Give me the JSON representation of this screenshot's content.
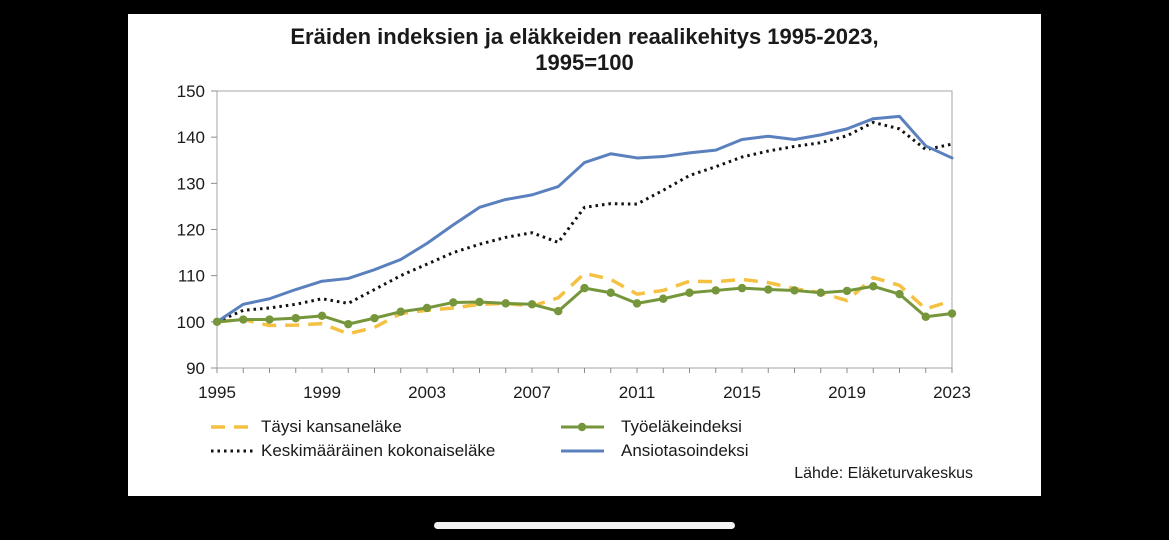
{
  "chart_data": {
    "type": "line",
    "title": "Eräiden indeksien ja eläkkeiden reaalikehitys 1995-2023,",
    "subtitle": "1995=100",
    "xlabel": "",
    "ylabel": "",
    "ylim": [
      90,
      150
    ],
    "yticks": [
      90,
      100,
      110,
      120,
      130,
      140,
      150
    ],
    "xlim": [
      1995,
      2023
    ],
    "xticks": [
      1995,
      1999,
      2003,
      2007,
      2011,
      2015,
      2019,
      2023
    ],
    "x": [
      1995,
      1996,
      1997,
      1998,
      1999,
      2000,
      2001,
      2002,
      2003,
      2004,
      2005,
      2006,
      2007,
      2008,
      2009,
      2010,
      2011,
      2012,
      2013,
      2014,
      2015,
      2016,
      2017,
      2018,
      2019,
      2020,
      2021,
      2022,
      2023
    ],
    "series": [
      {
        "name": "Täysi kansaneläke",
        "color": "#F5C142",
        "style": "dashed",
        "values": [
          100,
          100.5,
          99.2,
          99.3,
          99.6,
          97.4,
          98.8,
          101.8,
          102.5,
          103,
          103.8,
          104,
          103.4,
          105.2,
          110.5,
          109.2,
          106,
          106.8,
          108.8,
          108.7,
          109.2,
          108.5,
          107.2,
          106.3,
          104.6,
          109.6,
          107.9,
          102.8,
          104.6
        ]
      },
      {
        "name": "Työeläkeindeksi",
        "color": "#76963C",
        "style": "solid-markers",
        "values": [
          100,
          100.5,
          100.5,
          100.8,
          101.3,
          99.5,
          100.8,
          102.2,
          103,
          104.2,
          104.3,
          104,
          103.8,
          102.3,
          107.3,
          106.3,
          104,
          105,
          106.3,
          106.8,
          107.3,
          107,
          106.8,
          106.3,
          106.7,
          107.7,
          106,
          101.1,
          101.8
        ]
      },
      {
        "name": "Keskimääräinen kokonaiseläke",
        "color": "#111111",
        "style": "dotted",
        "values": [
          100,
          102.5,
          103,
          103.8,
          105,
          104,
          107,
          110,
          112.5,
          115,
          116.8,
          118.3,
          119.3,
          117.2,
          124.8,
          125.6,
          125.5,
          128.5,
          131.7,
          133.6,
          135.7,
          137,
          138,
          138.8,
          140.3,
          143.2,
          141.8,
          137.3,
          138.5
        ]
      },
      {
        "name": "Ansiotasoindeksi",
        "color": "#5B80BE",
        "style": "solid",
        "values": [
          100,
          103.8,
          105,
          107,
          108.8,
          109.4,
          111.3,
          113.5,
          117,
          121,
          124.8,
          126.5,
          127.5,
          129.3,
          134.5,
          136.4,
          135.5,
          135.8,
          136.6,
          137.2,
          139.5,
          140.2,
          139.5,
          140.5,
          141.8,
          144,
          144.5,
          138.1,
          135.5
        ]
      }
    ],
    "source": "Lähde: Eläketurvakeskus"
  }
}
